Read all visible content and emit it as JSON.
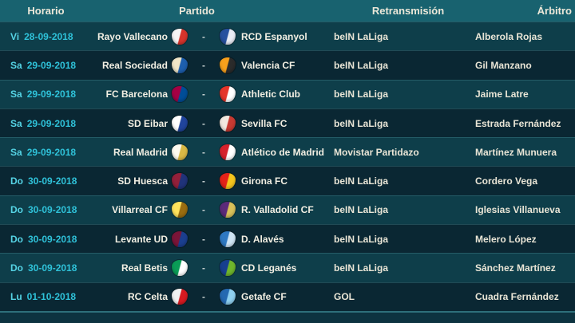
{
  "colors": {
    "header_bg": "#18626f",
    "header_text": "#ece8d9",
    "row_odd_bg": "#0e3e4a",
    "row_even_bg": "#0a2733",
    "separator": "rgba(120,200,210,0.22)",
    "bottom_line": "#2e6f7a",
    "partial_row_bg": "#0d3340",
    "day_text": "#55d3e4",
    "date_text": "#2fc2d9",
    "team_text": "#f2efe3",
    "broadcast_text": "#e9e5d6",
    "referee_text": "#e9e5d6",
    "dash_text": "#c8d2d2"
  },
  "header": {
    "columns": [
      {
        "label": "Horario"
      },
      {
        "label": "Partido"
      },
      {
        "label": "Retransmisión"
      },
      {
        "label": "Árbitro"
      }
    ]
  },
  "rows": [
    {
      "day": "Vi",
      "date": "28-09-2018",
      "home": {
        "name": "Rayo Vallecano",
        "crest_colors": [
          "#f5f5f5",
          "#d7342c"
        ]
      },
      "vs": "-",
      "away": {
        "name": "RCD Espanyol",
        "crest_colors": [
          "#27519f",
          "#e9ecf5"
        ]
      },
      "broadcast": "beIN LaLiga",
      "referee": "Alberola Rojas"
    },
    {
      "day": "Sa",
      "date": "29-09-2018",
      "home": {
        "name": "Real Sociedad",
        "crest_colors": [
          "#f0e6c8",
          "#1d5fae"
        ]
      },
      "vs": "-",
      "away": {
        "name": "Valencia CF",
        "crest_colors": [
          "#f8a01c",
          "#2b2b2b"
        ]
      },
      "broadcast": "beIN LaLiga",
      "referee": "Gil Manzano"
    },
    {
      "day": "Sa",
      "date": "29-09-2018",
      "home": {
        "name": "FC Barcelona",
        "crest_colors": [
          "#a50044",
          "#004d98"
        ]
      },
      "vs": "-",
      "away": {
        "name": "Athletic Club",
        "crest_colors": [
          "#e5352a",
          "#ffffff"
        ]
      },
      "broadcast": "beIN LaLiga",
      "referee": "Jaime Latre"
    },
    {
      "day": "Sa",
      "date": "29-09-2018",
      "home": {
        "name": "SD Eibar",
        "crest_colors": [
          "#ffffff",
          "#20449c"
        ]
      },
      "vs": "-",
      "away": {
        "name": "Sevilla FC",
        "crest_colors": [
          "#f3e9e0",
          "#c83a32"
        ]
      },
      "broadcast": "beIN LaLiga",
      "referee": "Estrada Fernández"
    },
    {
      "day": "Sa",
      "date": "29-09-2018",
      "home": {
        "name": "Real Madrid",
        "crest_colors": [
          "#fdfbf1",
          "#d9b945"
        ]
      },
      "vs": "-",
      "away": {
        "name": "Atlético de Madrid",
        "crest_colors": [
          "#d6222c",
          "#ffffff"
        ]
      },
      "broadcast": "Movistar Partidazo",
      "referee": "Martínez Munuera"
    },
    {
      "day": "Do",
      "date": "30-09-2018",
      "home": {
        "name": "SD Huesca",
        "crest_colors": [
          "#93203a",
          "#20337a"
        ]
      },
      "vs": "-",
      "away": {
        "name": "Girona FC",
        "crest_colors": [
          "#e32219",
          "#f5c51d"
        ]
      },
      "broadcast": "beIN LaLiga",
      "referee": "Cordero Vega"
    },
    {
      "day": "Do",
      "date": "30-09-2018",
      "home": {
        "name": "Villarreal CF",
        "crest_colors": [
          "#ffe35c",
          "#9a6d10"
        ]
      },
      "vs": "-",
      "away": {
        "name": "R. Valladolid CF",
        "crest_colors": [
          "#5b2a7a",
          "#d9c15a"
        ]
      },
      "broadcast": "beIN LaLiga",
      "referee": "Iglesias Villanueva"
    },
    {
      "day": "Do",
      "date": "30-09-2018",
      "home": {
        "name": "Levante UD",
        "crest_colors": [
          "#7a1538",
          "#1b3f8f"
        ]
      },
      "vs": "-",
      "away": {
        "name": "D. Alavés",
        "crest_colors": [
          "#2f79c2",
          "#cfe5f5"
        ]
      },
      "broadcast": "beIN LaLiga",
      "referee": "Melero López"
    },
    {
      "day": "Do",
      "date": "30-09-2018",
      "home": {
        "name": "Real Betis",
        "crest_colors": [
          "#0a9c57",
          "#ffffff"
        ]
      },
      "vs": "-",
      "away": {
        "name": "CD Leganés",
        "crest_colors": [
          "#173f8f",
          "#6fb52c"
        ]
      },
      "broadcast": "beIN LaLiga",
      "referee": "Sánchez Martínez"
    },
    {
      "day": "Lu",
      "date": "01-10-2018",
      "home": {
        "name": "RC Celta",
        "crest_colors": [
          "#f2f2f2",
          "#d81a21"
        ]
      },
      "vs": "-",
      "away": {
        "name": "Getafe CF",
        "crest_colors": [
          "#2569b1",
          "#8ed0f0"
        ]
      },
      "broadcast": "GOL",
      "referee": "Cuadra Fernández"
    }
  ]
}
